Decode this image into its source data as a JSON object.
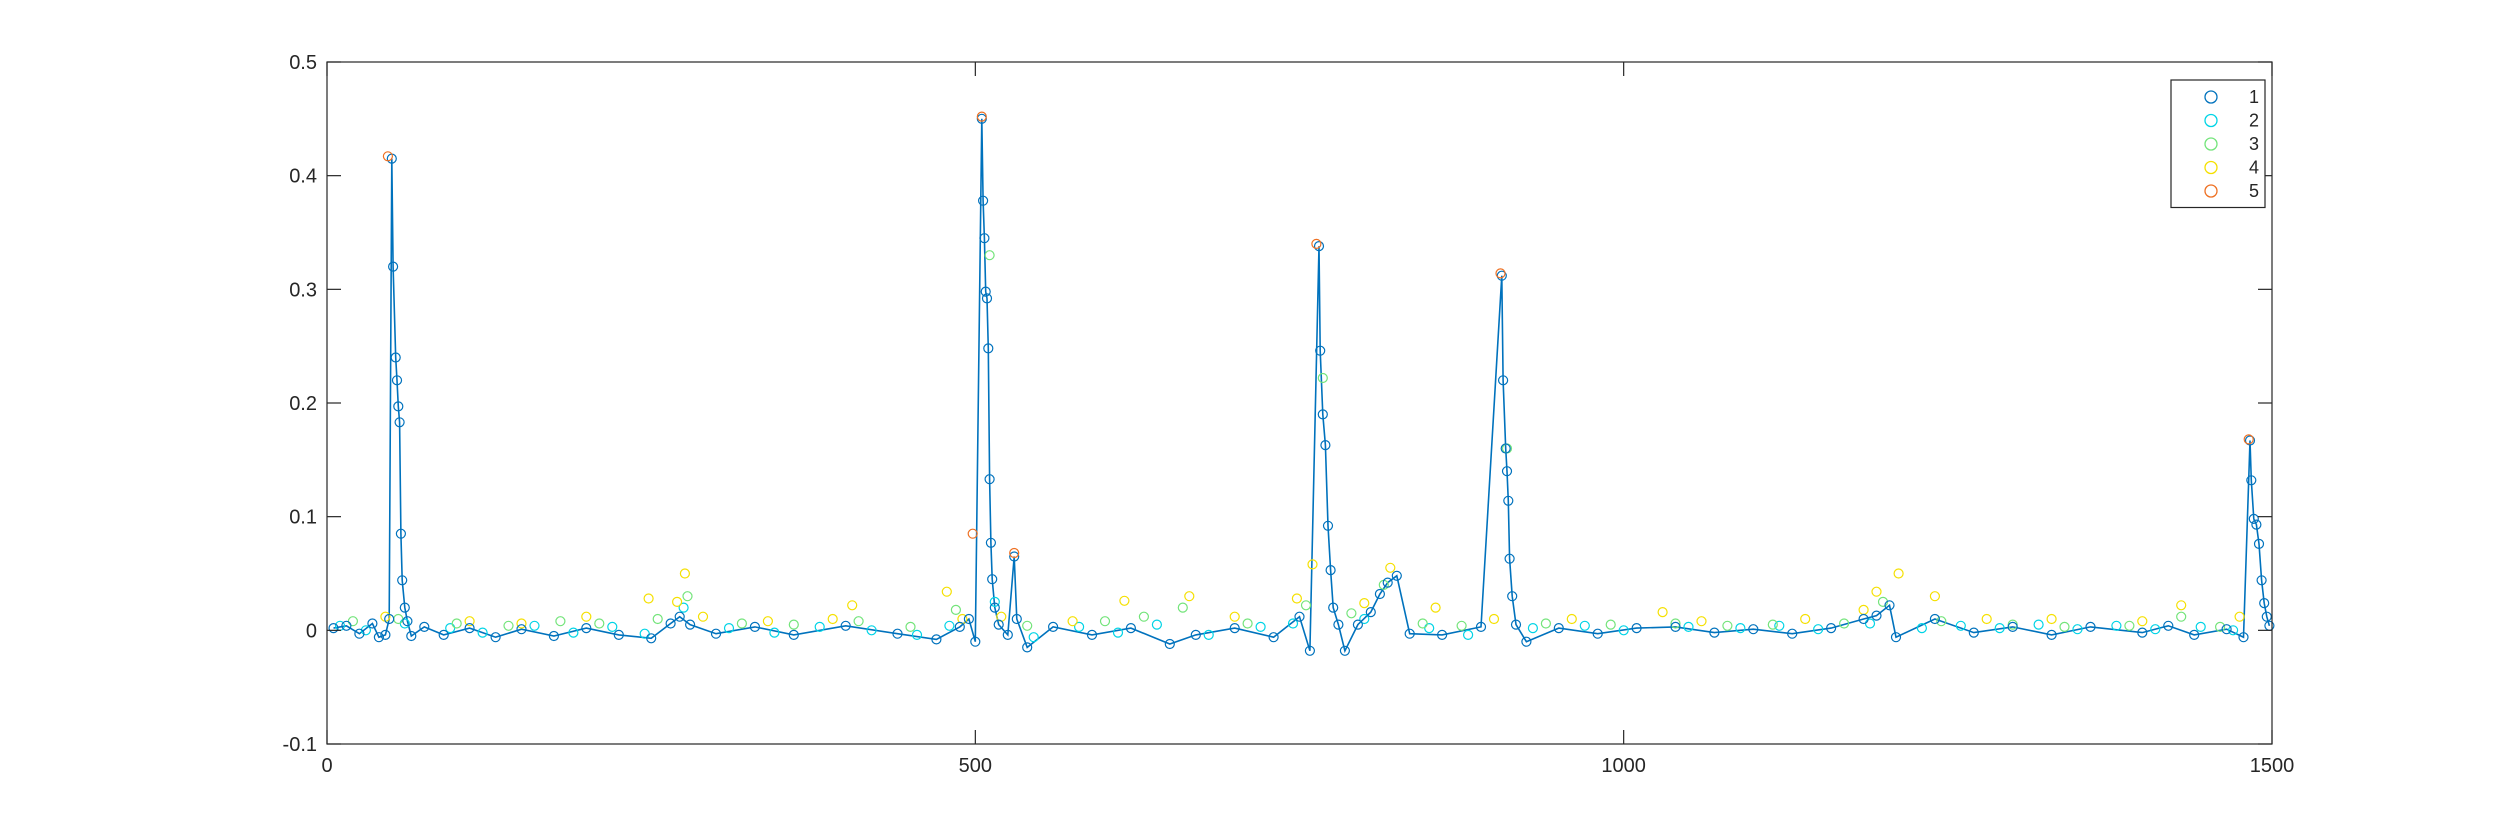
{
  "chart_data": {
    "type": "scatter",
    "title": "",
    "xlabel": "",
    "ylabel": "",
    "xlim": [
      0,
      1500
    ],
    "ylim": [
      -0.1,
      0.5
    ],
    "x_ticks": [
      0,
      500,
      1000,
      1500
    ],
    "x_tick_labels": [
      "0",
      "500",
      "1000",
      "1500"
    ],
    "y_ticks": [
      -0.1,
      0,
      0.1,
      0.2,
      0.3,
      0.4,
      0.5
    ],
    "y_tick_labels": [
      "-0.1",
      "0",
      "0.1",
      "0.2",
      "0.3",
      "0.4",
      "0.5"
    ],
    "grid": false,
    "legend_position": "top-right",
    "connecting_line": {
      "series": "1",
      "color": "#0072BD"
    },
    "series": [
      {
        "name": "1",
        "color": "#0072BD",
        "marker": "circle-open",
        "points": [
          [
            5,
            0.002
          ],
          [
            15,
            0.004
          ],
          [
            25,
            -0.003
          ],
          [
            35,
            0.006
          ],
          [
            40,
            -0.006
          ],
          [
            45,
            -0.004
          ],
          [
            48,
            0.01
          ],
          [
            50,
            0.415
          ],
          [
            51,
            0.32
          ],
          [
            53,
            0.24
          ],
          [
            54,
            0.22
          ],
          [
            55,
            0.197
          ],
          [
            56,
            0.183
          ],
          [
            57,
            0.085
          ],
          [
            58,
            0.044
          ],
          [
            60,
            0.02
          ],
          [
            62,
            0.008
          ],
          [
            65,
            -0.005
          ],
          [
            75,
            0.003
          ],
          [
            90,
            -0.004
          ],
          [
            110,
            0.002
          ],
          [
            130,
            -0.006
          ],
          [
            150,
            0.001
          ],
          [
            175,
            -0.005
          ],
          [
            200,
            0.002
          ],
          [
            225,
            -0.004
          ],
          [
            250,
            -0.007
          ],
          [
            265,
            0.006
          ],
          [
            272,
            0.012
          ],
          [
            280,
            0.005
          ],
          [
            300,
            -0.003
          ],
          [
            330,
            0.003
          ],
          [
            360,
            -0.004
          ],
          [
            400,
            0.004
          ],
          [
            440,
            -0.003
          ],
          [
            470,
            -0.008
          ],
          [
            488,
            0.003
          ],
          [
            495,
            0.01
          ],
          [
            500,
            -0.01
          ],
          [
            505,
            0.45
          ],
          [
            506,
            0.378
          ],
          [
            507,
            0.345
          ],
          [
            508,
            0.298
          ],
          [
            509,
            0.292
          ],
          [
            510,
            0.248
          ],
          [
            511,
            0.133
          ],
          [
            512,
            0.077
          ],
          [
            513,
            0.045
          ],
          [
            515,
            0.02
          ],
          [
            518,
            0.005
          ],
          [
            525,
            -0.004
          ],
          [
            530,
            0.065
          ],
          [
            532,
            0.01
          ],
          [
            540,
            -0.015
          ],
          [
            560,
            0.003
          ],
          [
            590,
            -0.004
          ],
          [
            620,
            0.002
          ],
          [
            650,
            -0.012
          ],
          [
            670,
            -0.004
          ],
          [
            700,
            0.002
          ],
          [
            730,
            -0.006
          ],
          [
            750,
            0.012
          ],
          [
            758,
            -0.018
          ],
          [
            765,
            0.338
          ],
          [
            766,
            0.246
          ],
          [
            768,
            0.19
          ],
          [
            770,
            0.163
          ],
          [
            772,
            0.092
          ],
          [
            774,
            0.053
          ],
          [
            776,
            0.02
          ],
          [
            780,
            0.005
          ],
          [
            785,
            -0.018
          ],
          [
            795,
            0.005
          ],
          [
            805,
            0.016
          ],
          [
            812,
            0.032
          ],
          [
            818,
            0.042
          ],
          [
            825,
            0.048
          ],
          [
            835,
            -0.003
          ],
          [
            860,
            -0.004
          ],
          [
            890,
            0.003
          ],
          [
            906,
            0.312
          ],
          [
            907,
            0.22
          ],
          [
            909,
            0.16
          ],
          [
            910,
            0.14
          ],
          [
            911,
            0.114
          ],
          [
            912,
            0.063
          ],
          [
            914,
            0.03
          ],
          [
            917,
            0.005
          ],
          [
            925,
            -0.01
          ],
          [
            950,
            0.002
          ],
          [
            980,
            -0.003
          ],
          [
            1010,
            0.002
          ],
          [
            1040,
            0.003
          ],
          [
            1070,
            -0.002
          ],
          [
            1100,
            0.001
          ],
          [
            1130,
            -0.003
          ],
          [
            1160,
            0.002
          ],
          [
            1185,
            0.01
          ],
          [
            1195,
            0.013
          ],
          [
            1205,
            0.022
          ],
          [
            1210,
            -0.006
          ],
          [
            1240,
            0.01
          ],
          [
            1270,
            -0.002
          ],
          [
            1300,
            0.003
          ],
          [
            1330,
            -0.004
          ],
          [
            1360,
            0.003
          ],
          [
            1400,
            -0.002
          ],
          [
            1420,
            0.004
          ],
          [
            1440,
            -0.004
          ],
          [
            1465,
            0.001
          ],
          [
            1478,
            -0.006
          ],
          [
            1483,
            0.167
          ],
          [
            1484,
            0.132
          ],
          [
            1486,
            0.098
          ],
          [
            1488,
            0.093
          ],
          [
            1490,
            0.076
          ],
          [
            1492,
            0.044
          ],
          [
            1494,
            0.024
          ],
          [
            1496,
            0.012
          ],
          [
            1498,
            0.004
          ]
        ]
      },
      {
        "name": "2",
        "color": "#00D4E6",
        "marker": "circle-open",
        "points": [
          [
            10,
            0.004
          ],
          [
            30,
            0.0
          ],
          [
            60,
            0.006
          ],
          [
            95,
            0.002
          ],
          [
            120,
            -0.002
          ],
          [
            160,
            0.004
          ],
          [
            190,
            -0.002
          ],
          [
            220,
            0.003
          ],
          [
            245,
            -0.003
          ],
          [
            275,
            0.02
          ],
          [
            310,
            0.002
          ],
          [
            345,
            -0.002
          ],
          [
            380,
            0.003
          ],
          [
            420,
            0.0
          ],
          [
            455,
            -0.004
          ],
          [
            480,
            0.004
          ],
          [
            515,
            0.025
          ],
          [
            545,
            -0.006
          ],
          [
            580,
            0.003
          ],
          [
            610,
            -0.002
          ],
          [
            640,
            0.005
          ],
          [
            680,
            -0.004
          ],
          [
            720,
            0.003
          ],
          [
            745,
            0.006
          ],
          [
            800,
            0.01
          ],
          [
            850,
            0.002
          ],
          [
            880,
            -0.004
          ],
          [
            930,
            0.002
          ],
          [
            970,
            0.004
          ],
          [
            1000,
            0.0
          ],
          [
            1050,
            0.003
          ],
          [
            1090,
            0.002
          ],
          [
            1120,
            0.004
          ],
          [
            1150,
            0.001
          ],
          [
            1190,
            0.006
          ],
          [
            1230,
            0.002
          ],
          [
            1260,
            0.004
          ],
          [
            1290,
            0.002
          ],
          [
            1320,
            0.005
          ],
          [
            1350,
            0.001
          ],
          [
            1380,
            0.004
          ],
          [
            1410,
            0.001
          ],
          [
            1445,
            0.003
          ],
          [
            1470,
            0.0
          ]
        ]
      },
      {
        "name": "3",
        "color": "#73E47A",
        "marker": "circle-open",
        "points": [
          [
            20,
            0.008
          ],
          [
            55,
            0.01
          ],
          [
            100,
            0.006
          ],
          [
            140,
            0.004
          ],
          [
            180,
            0.008
          ],
          [
            210,
            0.006
          ],
          [
            255,
            0.01
          ],
          [
            278,
            0.03
          ],
          [
            320,
            0.006
          ],
          [
            360,
            0.005
          ],
          [
            410,
            0.008
          ],
          [
            450,
            0.003
          ],
          [
            485,
            0.018
          ],
          [
            511,
            0.33
          ],
          [
            540,
            0.004
          ],
          [
            600,
            0.008
          ],
          [
            630,
            0.012
          ],
          [
            660,
            0.02
          ],
          [
            710,
            0.006
          ],
          [
            755,
            0.022
          ],
          [
            768,
            0.222
          ],
          [
            790,
            0.015
          ],
          [
            815,
            0.04
          ],
          [
            845,
            0.006
          ],
          [
            875,
            0.004
          ],
          [
            910,
            0.16
          ],
          [
            940,
            0.006
          ],
          [
            990,
            0.005
          ],
          [
            1040,
            0.006
          ],
          [
            1080,
            0.004
          ],
          [
            1115,
            0.005
          ],
          [
            1170,
            0.006
          ],
          [
            1200,
            0.025
          ],
          [
            1245,
            0.008
          ],
          [
            1300,
            0.005
          ],
          [
            1340,
            0.003
          ],
          [
            1390,
            0.004
          ],
          [
            1430,
            0.012
          ],
          [
            1460,
            0.003
          ]
        ]
      },
      {
        "name": "4",
        "color": "#F5E000",
        "marker": "circle-open",
        "points": [
          [
            45,
            0.012
          ],
          [
            110,
            0.008
          ],
          [
            150,
            0.006
          ],
          [
            200,
            0.012
          ],
          [
            248,
            0.028
          ],
          [
            270,
            0.025
          ],
          [
            276,
            0.05
          ],
          [
            290,
            0.012
          ],
          [
            340,
            0.008
          ],
          [
            390,
            0.01
          ],
          [
            405,
            0.022
          ],
          [
            478,
            0.034
          ],
          [
            490,
            0.01
          ],
          [
            520,
            0.012
          ],
          [
            575,
            0.008
          ],
          [
            615,
            0.026
          ],
          [
            665,
            0.03
          ],
          [
            700,
            0.012
          ],
          [
            748,
            0.028
          ],
          [
            760,
            0.058
          ],
          [
            800,
            0.024
          ],
          [
            820,
            0.055
          ],
          [
            855,
            0.02
          ],
          [
            900,
            0.01
          ],
          [
            960,
            0.01
          ],
          [
            1030,
            0.016
          ],
          [
            1060,
            0.008
          ],
          [
            1140,
            0.01
          ],
          [
            1185,
            0.018
          ],
          [
            1195,
            0.034
          ],
          [
            1212,
            0.05
          ],
          [
            1240,
            0.03
          ],
          [
            1280,
            0.01
          ],
          [
            1330,
            0.01
          ],
          [
            1400,
            0.008
          ],
          [
            1430,
            0.022
          ],
          [
            1475,
            0.012
          ]
        ]
      },
      {
        "name": "5",
        "color": "#EE7022",
        "marker": "circle-open",
        "points": [
          [
            47,
            0.417
          ],
          [
            498,
            0.085
          ],
          [
            505,
            0.452
          ],
          [
            530,
            0.068
          ],
          [
            763,
            0.34
          ],
          [
            905,
            0.314
          ],
          [
            1482,
            0.168
          ]
        ]
      }
    ]
  }
}
